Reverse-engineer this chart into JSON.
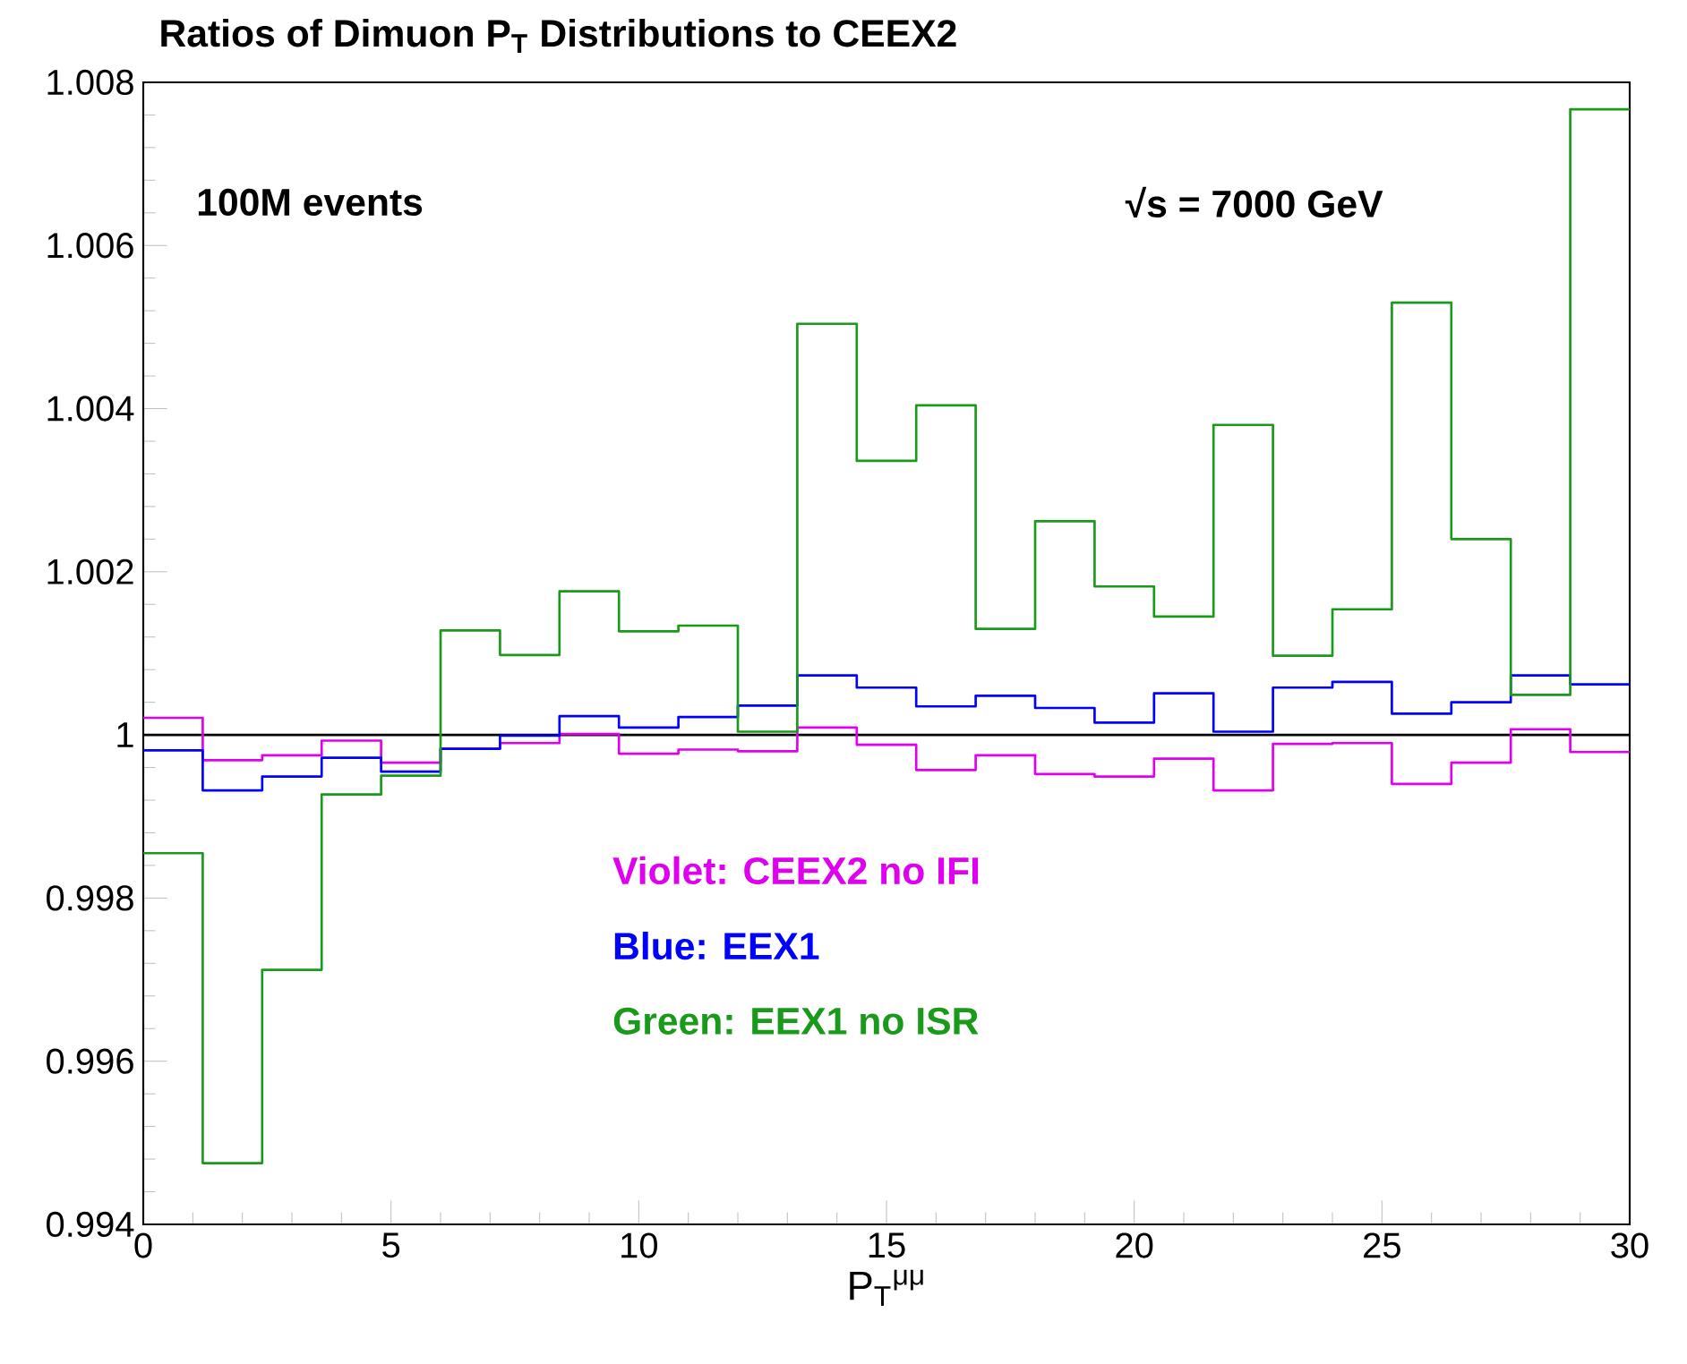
{
  "chart_data": {
    "type": "histogram",
    "title": "Ratios of Dimuon P$_{T}$ Distributions to CEEX2",
    "xlabel": "P$_{T}$$^{μμ}$",
    "annotations": [
      "100M events",
      "√s = 7000 GeV"
    ],
    "bins": [
      0,
      1.2,
      2.4,
      3.6,
      4.8,
      6,
      7.2,
      8.4,
      9.6,
      10.8,
      12,
      13.2,
      14.4,
      15.6,
      16.8,
      18,
      19.2,
      20.4,
      21.6,
      22.8,
      24,
      25.2,
      26.4,
      27.6,
      28.8,
      30
    ],
    "series": [
      {
        "name": "Violet:  CEEX2 no IFI",
        "color": "#e000f0",
        "values": [
          1.00021,
          0.99969,
          0.99975,
          0.99993,
          0.99966,
          0.99983,
          0.9999,
          1.00001,
          0.99977,
          0.99982,
          0.9998,
          1.00009,
          0.99988,
          0.99957,
          0.99975,
          0.99952,
          0.99949,
          0.99971,
          0.99932,
          0.99989,
          0.9999,
          0.9994,
          0.99966,
          1.00007,
          0.99979
        ]
      },
      {
        "name": "Blue:   EEX1",
        "color": "#0000ff",
        "values": [
          0.99981,
          0.99932,
          0.99949,
          0.99972,
          0.99955,
          0.99983,
          0.99999,
          1.00023,
          1.00009,
          1.00022,
          1.00036,
          1.00073,
          1.00058,
          1.00035,
          1.00048,
          1.00033,
          1.00015,
          1.00051,
          1.00004,
          1.00058,
          1.00065,
          1.00026,
          1.0004,
          1.00073,
          1.00062
        ]
      },
      {
        "name": "Green:  EEX1 no ISR",
        "color": "#1a9a1a",
        "values": [
          0.99855,
          0.99475,
          0.99712,
          0.99927,
          0.9995,
          1.00128,
          1.00098,
          1.00176,
          1.00127,
          1.00134,
          1.00004,
          1.00504,
          1.00336,
          1.00404,
          1.0013,
          1.00262,
          1.00182,
          1.00145,
          1.0038,
          1.00097,
          1.00154,
          1.0053,
          1.0024,
          1.00049,
          1.00767
        ]
      }
    ],
    "ref_lines": [
      {
        "axis": "y",
        "value": 1,
        "color": "#000000"
      }
    ],
    "xlim": [
      0,
      30
    ],
    "xticks": [
      0,
      5,
      10,
      15,
      20,
      25,
      30
    ],
    "ylim": [
      0.994,
      1.008
    ],
    "yticks": [
      0.994,
      0.996,
      0.998,
      1,
      1.002,
      1.004,
      1.006,
      1.008
    ]
  }
}
